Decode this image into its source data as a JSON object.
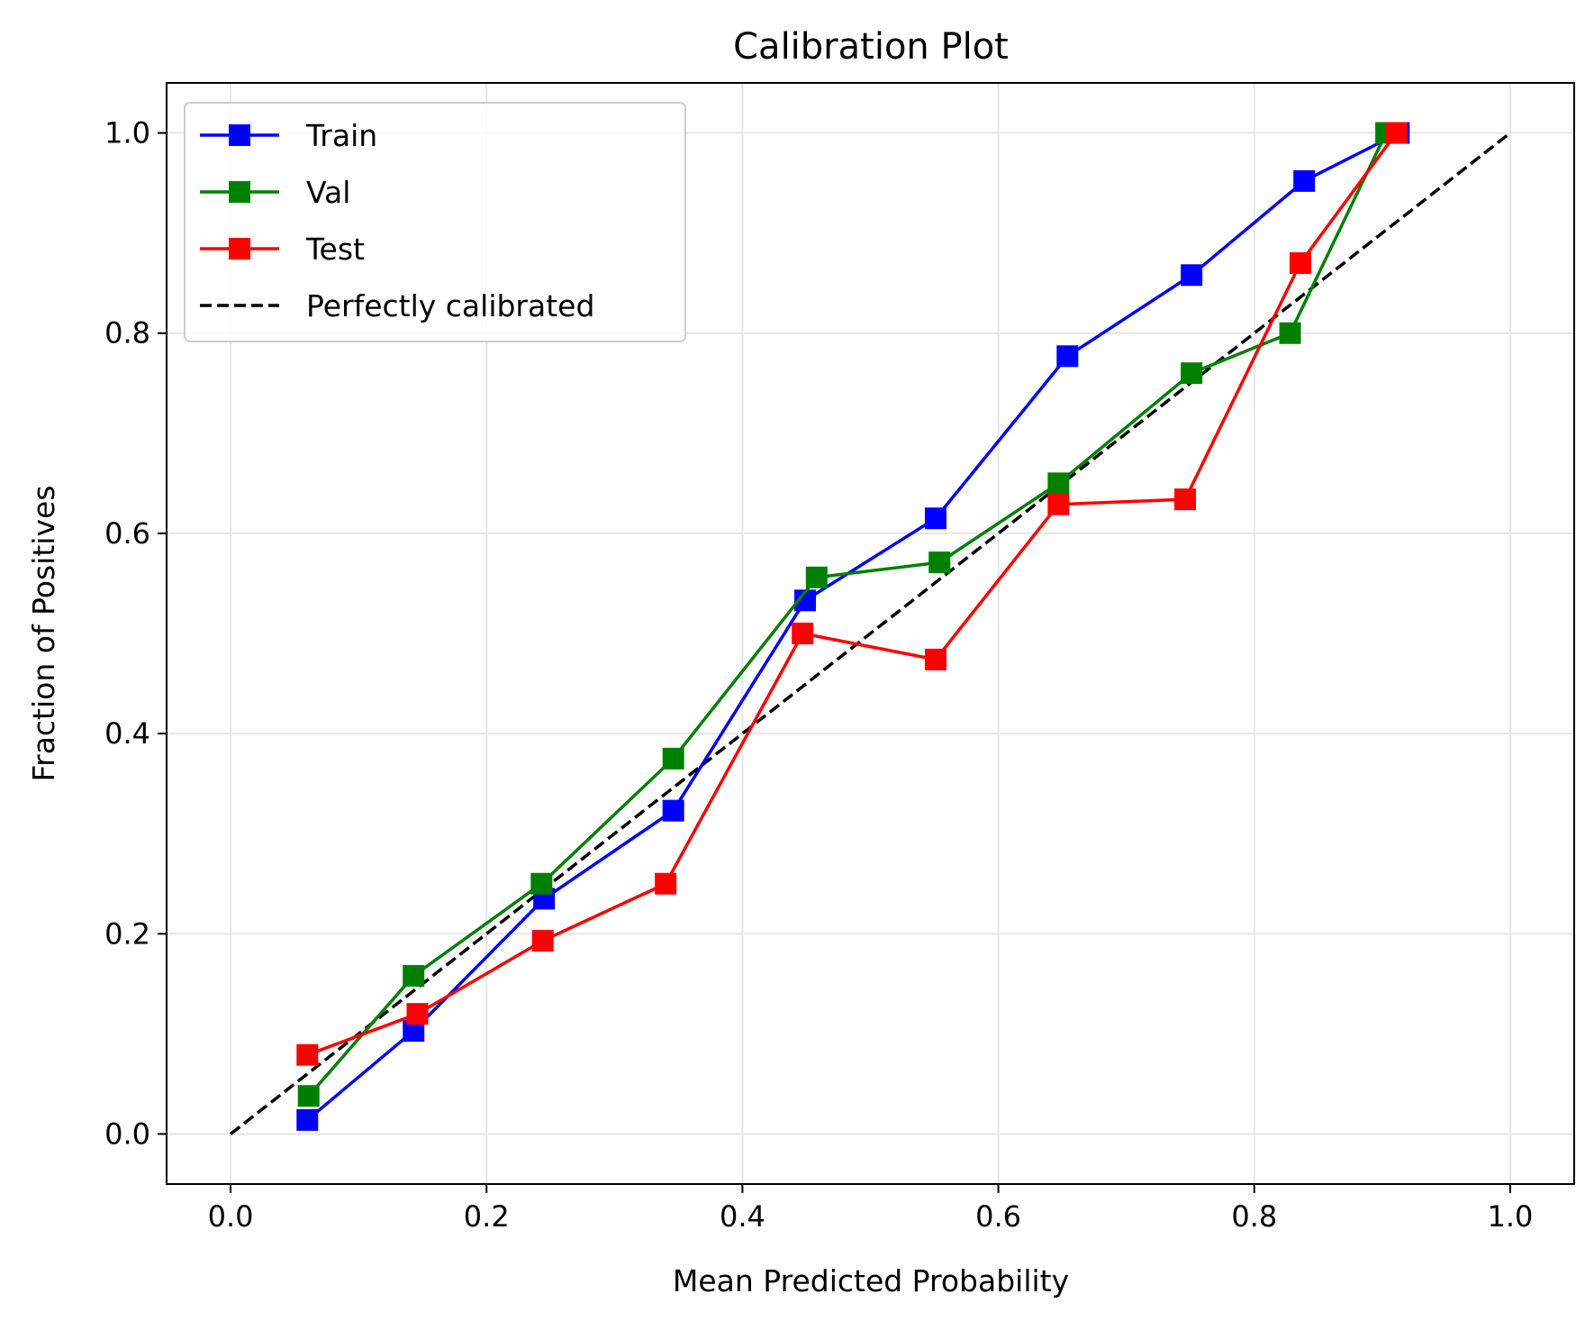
{
  "chart_data": {
    "type": "line",
    "title": "Calibration Plot",
    "xlabel": "Mean Predicted Probability",
    "ylabel": "Fraction of Positives",
    "xlim": [
      -0.05,
      1.05
    ],
    "ylim": [
      -0.05,
      1.05
    ],
    "xticks": [
      "0.0",
      "0.2",
      "0.4",
      "0.6",
      "0.8",
      "1.0"
    ],
    "yticks": [
      "0.0",
      "0.2",
      "0.4",
      "0.6",
      "0.8",
      "1.0"
    ],
    "grid": true,
    "legend_position": "top-left",
    "series": [
      {
        "name": "Train",
        "color": "#0000ff",
        "marker": "square",
        "x": [
          0.06,
          0.143,
          0.245,
          0.346,
          0.449,
          0.551,
          0.654,
          0.751,
          0.839,
          0.913
        ],
        "y": [
          0.014,
          0.103,
          0.235,
          0.323,
          0.533,
          0.615,
          0.777,
          0.858,
          0.952,
          1.0
        ]
      },
      {
        "name": "Val",
        "color": "#008000",
        "marker": "square",
        "x": [
          0.061,
          0.143,
          0.243,
          0.346,
          0.458,
          0.554,
          0.647,
          0.751,
          0.828,
          0.903
        ],
        "y": [
          0.038,
          0.158,
          0.25,
          0.375,
          0.556,
          0.571,
          0.65,
          0.76,
          0.8,
          1.0
        ]
      },
      {
        "name": "Test",
        "color": "#ff0000",
        "marker": "square",
        "x": [
          0.06,
          0.146,
          0.244,
          0.34,
          0.447,
          0.551,
          0.647,
          0.746,
          0.836,
          0.911
        ],
        "y": [
          0.079,
          0.12,
          0.193,
          0.25,
          0.5,
          0.474,
          0.629,
          0.634,
          0.87,
          1.0
        ]
      },
      {
        "name": "Perfectly calibrated",
        "color": "#000000",
        "style": "dashed",
        "x": [
          0.0,
          1.0
        ],
        "y": [
          0.0,
          1.0
        ]
      }
    ]
  }
}
